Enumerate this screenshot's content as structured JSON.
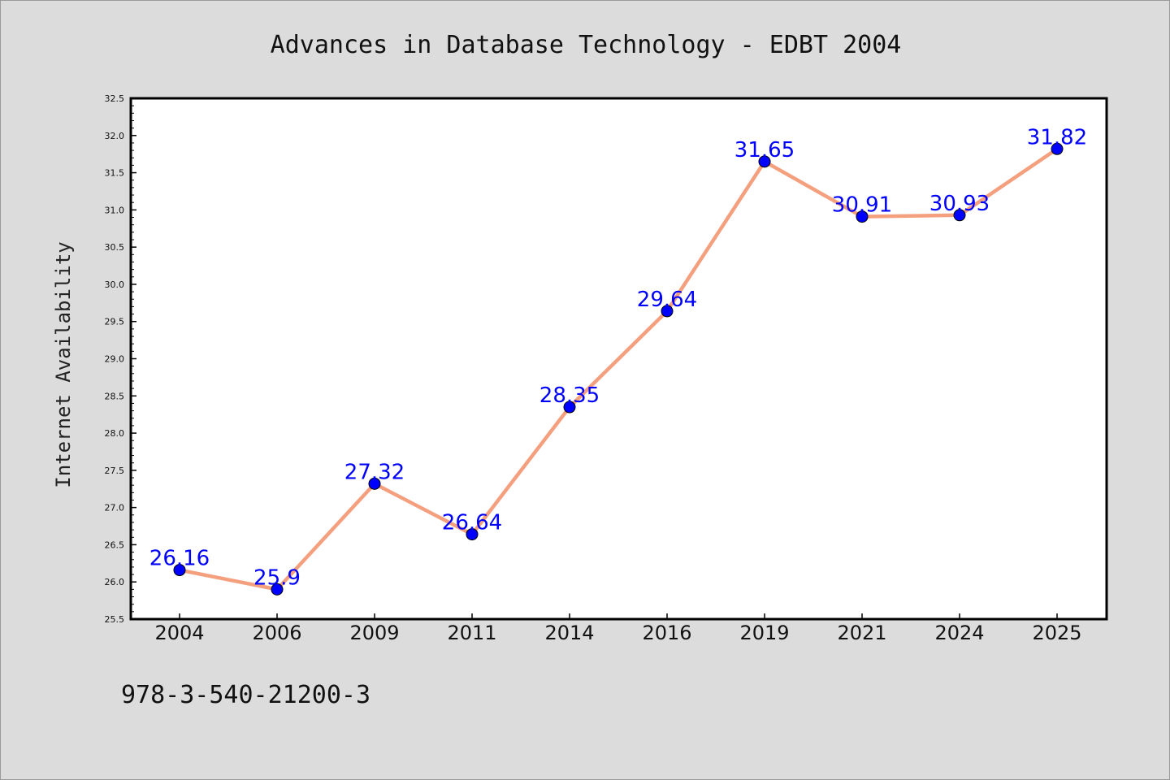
{
  "chart_data": {
    "type": "line",
    "title": "Advances in Database Technology - EDBT 2004",
    "xlabel": "",
    "ylabel": "Internet Availability",
    "categories": [
      "2004",
      "2006",
      "2009",
      "2011",
      "2014",
      "2016",
      "2019",
      "2021",
      "2024",
      "2025"
    ],
    "series": [
      {
        "values": [
          26.16,
          25.9,
          27.32,
          26.64,
          28.35,
          29.64,
          31.65,
          30.91,
          30.93,
          31.82
        ],
        "data_labels": [
          "26.16",
          "25.9",
          "27.32",
          "26.64",
          "28.35",
          "29.64",
          "31.65",
          "30.91",
          "30.93",
          "31.82"
        ]
      }
    ],
    "ylim": [
      25.5,
      32.5
    ],
    "yticks": [
      "25.5",
      "26.0",
      "26.5",
      "27.0",
      "27.5",
      "28.0",
      "28.5",
      "29.0",
      "29.5",
      "30.0",
      "30.5",
      "31.0",
      "31.5",
      "32.0",
      "32.5"
    ],
    "grid": false,
    "legend": "none"
  },
  "footer_text": "978-3-540-21200-3",
  "colors": {
    "background": "#dcdcdc",
    "plot_background": "#ffffff",
    "line": "#f4a07f",
    "marker": "#0000ff",
    "data_label": "#0000ff"
  }
}
